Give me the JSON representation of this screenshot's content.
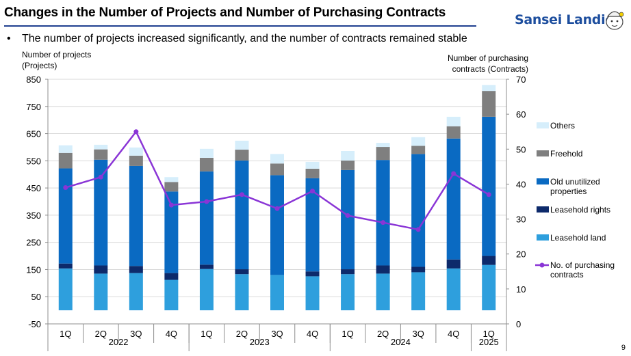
{
  "header": {
    "title": "Changes in the Number of Projects and Number of Purchasing Contracts",
    "logo_text": "Sansei Landic"
  },
  "bullet": {
    "symbol": "•",
    "text": "The number of projects increased significantly, and the number of contracts remained stable"
  },
  "page_number": "9",
  "chart_data": {
    "type": "bar",
    "stacked": true,
    "left_axis_title_line1": "Number of projects",
    "left_axis_title_line2": "(Projects)",
    "right_axis_title_line1": "Number of purchasing",
    "right_axis_title_line2": "contracts (Contracts)",
    "left_axis": {
      "min": -50,
      "max": 850,
      "ticks": [
        -50,
        50,
        150,
        250,
        350,
        450,
        550,
        650,
        750,
        850
      ]
    },
    "right_axis": {
      "min": 0,
      "max": 70,
      "ticks": [
        0,
        10,
        20,
        30,
        40,
        50,
        60,
        70
      ]
    },
    "categories": [
      "1Q",
      "2Q",
      "3Q",
      "4Q",
      "1Q",
      "2Q",
      "3Q",
      "4Q",
      "1Q",
      "2Q",
      "3Q",
      "4Q",
      "1Q"
    ],
    "year_groups": [
      {
        "label": "2022",
        "count": 4
      },
      {
        "label": "2023",
        "count": 4
      },
      {
        "label": "2024",
        "count": 4
      },
      {
        "label": "2025",
        "count": 1
      }
    ],
    "grid": true,
    "legend_position": "right",
    "series": [
      {
        "name": "Leasehold land",
        "color": "#2e9fdd",
        "values": [
          154,
          135,
          137,
          112,
          152,
          133,
          130,
          125,
          133,
          135,
          140,
          154,
          167
        ]
      },
      {
        "name": "Leasehold rights",
        "color": "#0d2a6b",
        "values": [
          18,
          30,
          26,
          25,
          16,
          18,
          0,
          18,
          18,
          30,
          20,
          33,
          33
        ]
      },
      {
        "name": "Old unutilized properties",
        "color": "#0a6ac2",
        "values": [
          350,
          389,
          368,
          300,
          343,
          400,
          367,
          343,
          365,
          388,
          415,
          445,
          512
        ]
      },
      {
        "name": "Freehold",
        "color": "#7f7f7f",
        "values": [
          57,
          38,
          38,
          35,
          50,
          40,
          43,
          35,
          35,
          48,
          30,
          45,
          95
        ]
      },
      {
        "name": "Others",
        "color": "#d6eefb",
        "values": [
          28,
          17,
          30,
          18,
          33,
          33,
          35,
          25,
          35,
          15,
          32,
          35,
          22
        ]
      }
    ],
    "line_series": {
      "name": "No. of purchasing contracts",
      "color": "#8a35d6",
      "axis": "right",
      "values": [
        39,
        42,
        55,
        34,
        35,
        37,
        33,
        38,
        31,
        29,
        27,
        43,
        37
      ]
    }
  }
}
